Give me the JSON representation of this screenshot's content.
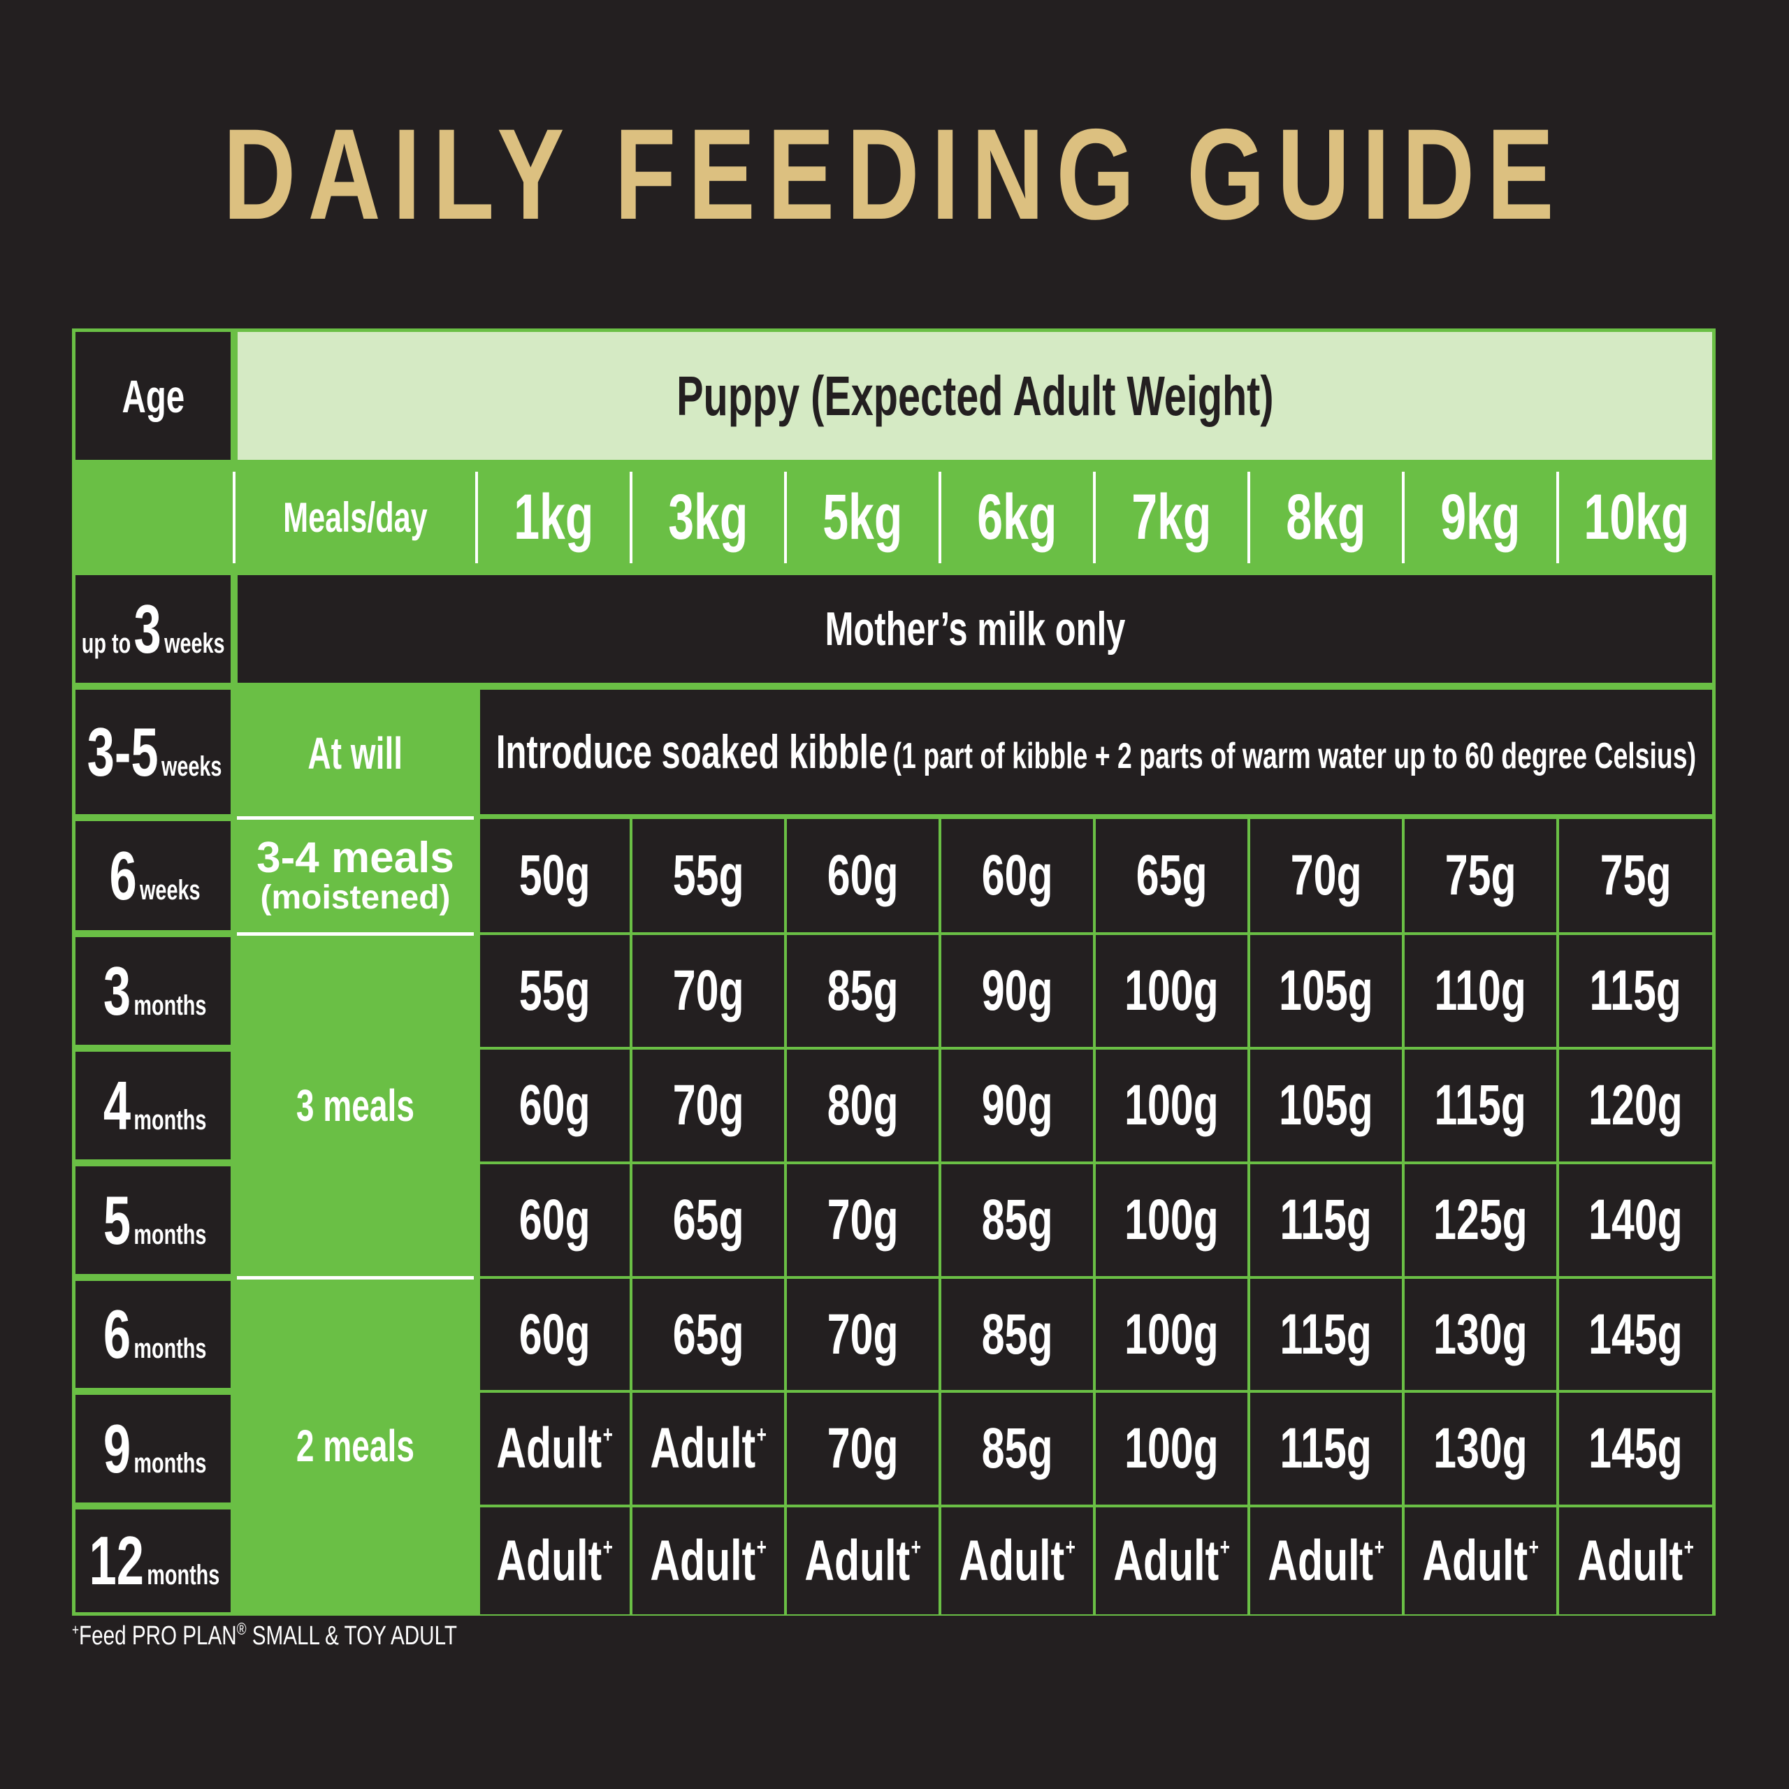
{
  "title": "DAILY FEEDING GUIDE",
  "header": {
    "age": "Age",
    "puppy": "Puppy (Expected Adult Weight)",
    "meals": "Meals/day",
    "weights": [
      "1kg",
      "3kg",
      "5kg",
      "6kg",
      "7kg",
      "8kg",
      "9kg",
      "10kg"
    ]
  },
  "rows": [
    {
      "age_pre": "up to",
      "age_num": "3",
      "age_unit": "weeks",
      "note": "Mother’s milk only"
    },
    {
      "age_pre": "",
      "age_num": "3-5",
      "age_unit": "weeks",
      "meals": "At will",
      "note": "Introduce soaked kibble",
      "note_sub": "(1 part of kibble + 2 parts of warm water up to 60 degree Celsius)"
    },
    {
      "age_pre": "",
      "age_num": "6",
      "age_unit": "weeks",
      "meals_line1": "3-4 meals",
      "meals_line2": "(moistened)",
      "values": [
        "50g",
        "55g",
        "60g",
        "60g",
        "65g",
        "70g",
        "75g",
        "75g"
      ]
    },
    {
      "age_pre": "",
      "age_num": "3",
      "age_unit": "months",
      "values": [
        "55g",
        "70g",
        "85g",
        "90g",
        "100g",
        "105g",
        "110g",
        "115g"
      ]
    },
    {
      "age_pre": "",
      "age_num": "4",
      "age_unit": "months",
      "values": [
        "60g",
        "70g",
        "80g",
        "90g",
        "100g",
        "105g",
        "115g",
        "120g"
      ]
    },
    {
      "age_pre": "",
      "age_num": "5",
      "age_unit": "months",
      "values": [
        "60g",
        "65g",
        "70g",
        "85g",
        "100g",
        "115g",
        "125g",
        "140g"
      ]
    },
    {
      "age_pre": "",
      "age_num": "6",
      "age_unit": "months",
      "values": [
        "60g",
        "65g",
        "70g",
        "85g",
        "100g",
        "115g",
        "130g",
        "145g"
      ]
    },
    {
      "age_pre": "",
      "age_num": "9",
      "age_unit": "months",
      "values": [
        "Adult",
        "Adult",
        "70g",
        "85g",
        "100g",
        "115g",
        "130g",
        "145g"
      ],
      "adult_marks": [
        true,
        true,
        false,
        false,
        false,
        false,
        false,
        false
      ]
    },
    {
      "age_pre": "",
      "age_num": "12",
      "age_unit": "months",
      "values": [
        "Adult",
        "Adult",
        "Adult",
        "Adult",
        "Adult",
        "Adult",
        "Adult",
        "Adult"
      ],
      "adult_marks": [
        true,
        true,
        true,
        true,
        true,
        true,
        true,
        true
      ]
    }
  ],
  "meal_groups": [
    {
      "label": "3 meals"
    },
    {
      "label": "2 meals"
    }
  ],
  "adult_mark": "+",
  "footnote": {
    "mark": "+",
    "text": "Feed PRO PLAN",
    "reg": "®",
    "text2": " SMALL & TOY ADULT"
  },
  "colors": {
    "background": "#231f20",
    "green": "#6abf45",
    "light_green": "#d5eac4",
    "gold": "#dcc080"
  }
}
